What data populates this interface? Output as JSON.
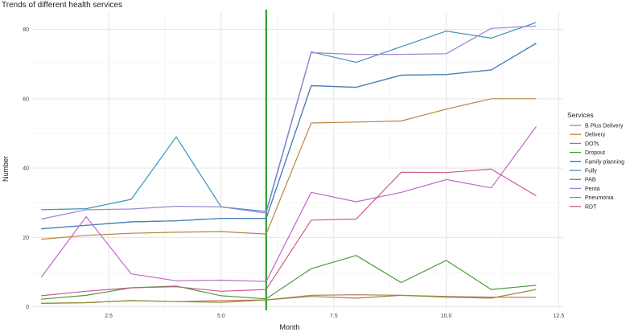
{
  "chart_data": {
    "type": "line",
    "title": "Trends of different health services",
    "xlabel": "Month",
    "ylabel": "Number",
    "xlim": [
      0.8,
      12.6
    ],
    "ylim": [
      -1,
      85
    ],
    "x_ticks": [
      2.5,
      5.0,
      7.5,
      10.0,
      12.5
    ],
    "x_tick_labels": [
      "2.5",
      "5.0",
      "7.5",
      "10.0",
      "12.5"
    ],
    "y_ticks": [
      0,
      20,
      40,
      60,
      80
    ],
    "y_tick_labels": [
      "0",
      "20",
      "40",
      "60",
      "80"
    ],
    "grid": true,
    "legend_position": "right",
    "legend_title": "Services",
    "vertical_line": {
      "x": 6,
      "color": "#2ca02c"
    },
    "x": [
      1,
      2,
      3,
      4,
      5,
      6,
      7,
      8,
      9,
      10,
      11,
      12
    ],
    "series": [
      {
        "name": "B Plus Delivery",
        "color": "#c77b6a",
        "values": [
          1.0,
          1.2,
          1.8,
          1.5,
          1.8,
          2.0,
          3.3,
          3.5,
          3.3,
          3.0,
          2.8,
          2.7
        ]
      },
      {
        "name": "Delivery",
        "color": "#b8863b",
        "values": [
          19.5,
          20.6,
          21.2,
          21.5,
          21.7,
          21.0,
          53.0,
          53.3,
          53.6,
          57.0,
          60.0,
          60.0
        ]
      },
      {
        "name": "DOTs",
        "color": "#8f8f3a",
        "values": [
          1.0,
          1.2,
          1.8,
          1.5,
          1.3,
          2.0,
          3.0,
          2.5,
          3.3,
          2.8,
          2.5,
          5.0
        ]
      },
      {
        "name": "Dropout",
        "color": "#4f9a3f",
        "values": [
          2.2,
          3.3,
          5.5,
          6.0,
          3.2,
          2.3,
          11.0,
          14.8,
          7.0,
          13.4,
          5.0,
          6.2
        ]
      },
      {
        "name": "Family planning",
        "color": "#2f8060",
        "values": [
          22.5,
          23.5,
          24.5,
          24.8,
          25.5,
          25.5,
          63.8,
          63.3,
          66.8,
          67.0,
          68.3,
          76.0
        ]
      },
      {
        "name": "Fully",
        "color": "#3b93b8",
        "values": [
          28.0,
          28.3,
          31.0,
          49.0,
          28.8,
          27.5,
          73.5,
          70.5,
          75.0,
          79.5,
          77.5,
          82.0
        ]
      },
      {
        "name": "PAB",
        "color": "#4a7ec2",
        "values": [
          22.5,
          23.5,
          24.5,
          24.8,
          25.5,
          25.5,
          63.8,
          63.3,
          66.8,
          67.0,
          68.3,
          76.0
        ]
      },
      {
        "name": "Penta",
        "color": "#9b86d4",
        "values": [
          25.3,
          28.0,
          28.2,
          29.0,
          28.8,
          27.0,
          73.3,
          72.8,
          72.8,
          73.0,
          80.3,
          81.0
        ]
      },
      {
        "name": "Pneumonia",
        "color": "#c068c8",
        "values": [
          8.5,
          26.0,
          9.5,
          7.5,
          7.7,
          7.3,
          33.0,
          30.3,
          33.0,
          36.7,
          34.3,
          52.0
        ]
      },
      {
        "name": "RDT",
        "color": "#cc5a8e",
        "values": [
          3.2,
          4.5,
          5.5,
          5.8,
          4.5,
          5.0,
          25.0,
          25.3,
          38.8,
          38.7,
          39.7,
          32.0
        ]
      }
    ]
  }
}
